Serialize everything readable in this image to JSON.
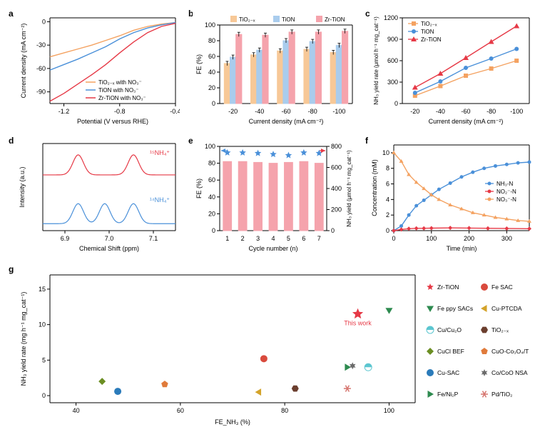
{
  "panel_labels": {
    "a": "a",
    "b": "b",
    "c": "c",
    "d": "d",
    "e": "e",
    "f": "f",
    "g": "g"
  },
  "colors": {
    "tio2x": "#f4a261",
    "tion": "#4a90d9",
    "zrtion": "#e63946",
    "bar_tio2x": "#f7c897",
    "bar_tion": "#a9cced",
    "bar_zrtion": "#f5a3ac",
    "bar_cycle": "#f5a3ac",
    "star_blue": "#4a90d9",
    "nh3n": "#4a90d9",
    "no2n": "#e63946",
    "no3n": "#f4a261",
    "nmr15": "#e63946",
    "nmr14": "#4a90d9",
    "text": "#000000",
    "axis": "#000000",
    "tick": "#000000",
    "cat_zrtion": "#e63946",
    "cat_feppy": "#2d8a4f",
    "cat_cucu2o": "#5cc6d0",
    "cat_cuclbef": "#6b8e23",
    "cat_cusac": "#2b7bba",
    "cat_feni2p": "#2d8a4f",
    "cat_fesac": "#d94a3d",
    "cat_cuptcda": "#d4a32a",
    "cat_tio2x": "#6b3e2e",
    "cat_cuoco3o4": "#e07b3b",
    "cat_cocoo": "#6b6b6b",
    "cat_pdtio2": "#d6756f"
  },
  "panel_a": {
    "title": "",
    "xlabel": "Potential (V versus RHE)",
    "ylabel": "Current density (mA cm⁻²)",
    "xlim": [
      -1.3,
      -0.4
    ],
    "xticks": [
      -1.2,
      -0.8,
      -0.4
    ],
    "ylim": [
      -105,
      5
    ],
    "yticks": [
      0,
      -30,
      -60,
      -90
    ],
    "legend": [
      "TiO₂₋ₓ with NO₃⁻",
      "TiON with NO₃⁻",
      "Zr-TiON with NO₃⁻"
    ],
    "series": {
      "tio2x": [
        [
          -0.4,
          -1
        ],
        [
          -0.5,
          -3
        ],
        [
          -0.6,
          -6
        ],
        [
          -0.7,
          -11
        ],
        [
          -0.8,
          -18
        ],
        [
          -0.9,
          -24
        ],
        [
          -1.0,
          -30
        ],
        [
          -1.1,
          -35
        ],
        [
          -1.2,
          -40
        ],
        [
          -1.3,
          -45
        ]
      ],
      "tion": [
        [
          -0.4,
          -1
        ],
        [
          -0.5,
          -4
        ],
        [
          -0.6,
          -8
        ],
        [
          -0.7,
          -14
        ],
        [
          -0.8,
          -22
        ],
        [
          -0.9,
          -32
        ],
        [
          -1.0,
          -40
        ],
        [
          -1.1,
          -48
        ],
        [
          -1.2,
          -55
        ],
        [
          -1.3,
          -62
        ]
      ],
      "zrtion": [
        [
          -0.4,
          -2
        ],
        [
          -0.5,
          -6
        ],
        [
          -0.6,
          -14
        ],
        [
          -0.7,
          -26
        ],
        [
          -0.8,
          -40
        ],
        [
          -0.9,
          -55
        ],
        [
          -1.0,
          -68
        ],
        [
          -1.1,
          -80
        ],
        [
          -1.2,
          -92
        ],
        [
          -1.3,
          -102
        ]
      ]
    }
  },
  "panel_b": {
    "xlabel": "Current density (mA cm⁻²)",
    "ylabel": "FE (%)",
    "xlim": [
      0,
      6
    ],
    "categories": [
      "-20",
      "-40",
      "-60",
      "-80",
      "-100"
    ],
    "ylim": [
      0,
      100
    ],
    "yticks": [
      0,
      20,
      40,
      60,
      80,
      100
    ],
    "legend": [
      "TiO₂₋ₓ",
      "TiON",
      "Zr-TiON"
    ],
    "bars": {
      "tio2x": [
        51,
        62,
        67,
        69,
        65
      ],
      "tion": [
        59,
        68,
        80,
        79,
        74
      ],
      "zrtion": [
        88,
        87,
        91,
        91,
        92
      ]
    }
  },
  "panel_c": {
    "xlabel": "Current density (mA cm⁻²)",
    "ylabel": "NH₃ yield rate (μmol h⁻¹ mg_cat⁻¹)",
    "xlim": [
      0,
      6
    ],
    "categories": [
      "-20",
      "-40",
      "-60",
      "-80",
      "-100"
    ],
    "ylim": [
      0,
      1200
    ],
    "yticks": [
      0,
      300,
      600,
      900,
      1200
    ],
    "legend": [
      "TiO₂₋ₓ",
      "TiON",
      "Zr-TiON"
    ],
    "series": {
      "tio2x": [
        110,
        245,
        390,
        490,
        600
      ],
      "tion": [
        150,
        310,
        500,
        630,
        765
      ],
      "zrtion": [
        225,
        420,
        640,
        865,
        1085
      ]
    }
  },
  "panel_d": {
    "xlabel": "Chemical Shift (ppm)",
    "ylabel": "Intensity (a.u.)",
    "xlim": [
      6.85,
      7.15
    ],
    "xticks": [
      6.9,
      7.0,
      7.1
    ],
    "labels": {
      "top": "¹⁵NH₄⁺",
      "bot": "¹⁴NH₄⁺"
    },
    "series15": {
      "peaks": [
        6.93,
        7.055
      ],
      "width": 0.012
    },
    "series14": {
      "peaks": [
        6.93,
        6.99,
        7.055
      ],
      "width": 0.012
    }
  },
  "panel_e": {
    "xlabel": "Cycle number (n)",
    "ylabel_left": "FE (%)",
    "ylabel_right": "NH₃ yield (μmol h⁻¹ mg_cat⁻¹)",
    "xlim": [
      0,
      8
    ],
    "categories": [
      "1",
      "2",
      "3",
      "4",
      "5",
      "6",
      "7"
    ],
    "ylim_left": [
      0,
      100
    ],
    "yticks_left": [
      0,
      20,
      40,
      60,
      80,
      100
    ],
    "ylim_right": [
      0,
      800
    ],
    "yticks_right": [
      0,
      200,
      400,
      600,
      800
    ],
    "bars_fe": [
      82,
      82,
      81,
      80,
      81,
      82,
      80
    ],
    "stars_yield": [
      740,
      740,
      735,
      725,
      715,
      740,
      735
    ]
  },
  "panel_f": {
    "xlabel": "Time (min)",
    "ylabel": "Concentration (mM)",
    "xlim": [
      0,
      360
    ],
    "xticks": [
      0,
      100,
      200,
      300
    ],
    "ylim": [
      0,
      11
    ],
    "yticks": [
      0,
      2,
      4,
      6,
      8,
      10
    ],
    "legend": [
      "NH₃-N",
      "NO₂⁻-N",
      "NO₃⁻-N"
    ],
    "series": {
      "nh3n": [
        [
          0,
          0
        ],
        [
          20,
          0.6
        ],
        [
          40,
          2
        ],
        [
          60,
          3.2
        ],
        [
          80,
          3.9
        ],
        [
          100,
          4.6
        ],
        [
          120,
          5.3
        ],
        [
          150,
          6.1
        ],
        [
          180,
          6.9
        ],
        [
          210,
          7.5
        ],
        [
          240,
          8.0
        ],
        [
          270,
          8.3
        ],
        [
          300,
          8.5
        ],
        [
          330,
          8.7
        ],
        [
          360,
          8.8
        ]
      ],
      "no2n": [
        [
          0,
          0
        ],
        [
          20,
          0.15
        ],
        [
          40,
          0.25
        ],
        [
          60,
          0.3
        ],
        [
          80,
          0.3
        ],
        [
          100,
          0.32
        ],
        [
          150,
          0.35
        ],
        [
          200,
          0.33
        ],
        [
          250,
          0.3
        ],
        [
          300,
          0.28
        ],
        [
          360,
          0.25
        ]
      ],
      "no3n": [
        [
          0,
          10
        ],
        [
          20,
          8.9
        ],
        [
          40,
          7.2
        ],
        [
          60,
          6.2
        ],
        [
          80,
          5.4
        ],
        [
          100,
          4.6
        ],
        [
          120,
          4.0
        ],
        [
          150,
          3.3
        ],
        [
          180,
          2.8
        ],
        [
          210,
          2.3
        ],
        [
          240,
          2.0
        ],
        [
          270,
          1.7
        ],
        [
          300,
          1.5
        ],
        [
          330,
          1.3
        ],
        [
          360,
          1.2
        ]
      ]
    }
  },
  "panel_g": {
    "xlabel": "FE_NH₃ (%)",
    "ylabel": "NH₃ yield rate (mg h⁻¹ mg_cat⁻¹)",
    "xlim": [
      35,
      105
    ],
    "xticks": [
      40,
      60,
      80,
      100
    ],
    "ylim": [
      -1,
      17
    ],
    "yticks": [
      0,
      5,
      10,
      15
    ],
    "this_work_label": "This work",
    "catalysts": [
      {
        "name": "Zr-TiON",
        "marker": "star",
        "color": "#e63946",
        "fe": 94,
        "yield": 11.5
      },
      {
        "name": "Fe ppy SACs",
        "marker": "tri-down",
        "color": "#2d8a4f",
        "fe": 100,
        "yield": 12
      },
      {
        "name": "Cu/Cu₂O",
        "marker": "half-circle",
        "color": "#5cc6d0",
        "fe": 96,
        "yield": 4
      },
      {
        "name": "CuCl BEF",
        "marker": "diamond",
        "color": "#6b8e23",
        "fe": 45,
        "yield": 2
      },
      {
        "name": "Cu-SAC",
        "marker": "circle",
        "color": "#2b7bba",
        "fe": 48,
        "yield": 0.6
      },
      {
        "name": "Fe/Ni₂P",
        "marker": "tri-right",
        "color": "#2d8a4f",
        "fe": 92,
        "yield": 4
      },
      {
        "name": "Fe SAC",
        "marker": "circle",
        "color": "#d94a3d",
        "fe": 76,
        "yield": 5.2
      },
      {
        "name": "Cu-PTCDA",
        "marker": "tri-left",
        "color": "#d4a32a",
        "fe": 75,
        "yield": 0.5
      },
      {
        "name": "TiO₂₋ₓ",
        "marker": "hex",
        "color": "#6b3e2e",
        "fe": 82,
        "yield": 1
      },
      {
        "name": "CuO-Co₃O₄/T",
        "marker": "pentagon",
        "color": "#e07b3b",
        "fe": 57,
        "yield": 1.6
      },
      {
        "name": "Co/CoO NSA",
        "marker": "star6",
        "color": "#6b6b6b",
        "fe": 93,
        "yield": 4.2
      },
      {
        "name": "Pd/TiO₂",
        "marker": "asterisk",
        "color": "#d6756f",
        "fe": 92,
        "yield": 1
      }
    ],
    "legend_order": [
      "Zr-TiON",
      "Fe ppy SACs",
      "Cu/Cu₂O",
      "CuCl BEF",
      "Cu-SAC",
      "Fe/Ni₂P",
      "Fe SAC",
      "Cu-PTCDA",
      "TiO₂₋ₓ",
      "CuO-Co₃O₄/T",
      "Co/CoO NSA",
      "Pd/TiO₂"
    ]
  }
}
